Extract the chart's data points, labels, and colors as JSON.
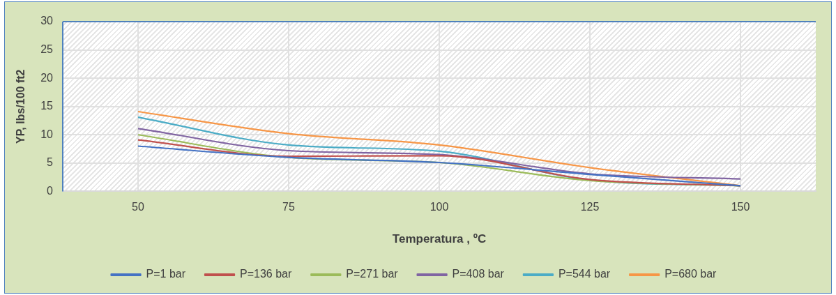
{
  "chart_data": {
    "type": "line",
    "xlabel": "Temperatura , ºC",
    "ylabel": "YP, lbs/100 ft2",
    "categories": [
      "50",
      "75",
      "100",
      "125",
      "150"
    ],
    "series": [
      {
        "name": "P=1 bar",
        "color": "#4472c4",
        "values": [
          8.0,
          6.0,
          5.1,
          3.0,
          1.0
        ]
      },
      {
        "name": "P=136 bar",
        "color": "#c0504d",
        "values": [
          9.1,
          6.2,
          6.3,
          2.1,
          1.0
        ]
      },
      {
        "name": "P=271 bar",
        "color": "#9bbb59",
        "values": [
          10.0,
          6.0,
          5.1,
          1.9,
          1.0
        ]
      },
      {
        "name": "P=408 bar",
        "color": "#8064a2",
        "values": [
          11.1,
          7.2,
          6.5,
          3.1,
          2.2
        ]
      },
      {
        "name": "P=544 bar",
        "color": "#4bacc6",
        "values": [
          13.1,
          8.2,
          7.1,
          2.0,
          1.0
        ]
      },
      {
        "name": "P=680 bar",
        "color": "#f79646",
        "values": [
          14.1,
          10.2,
          8.2,
          4.2,
          1.0
        ]
      }
    ],
    "ylim": [
      0,
      30
    ],
    "yticks": [
      0,
      5,
      10,
      15,
      20,
      25,
      30
    ],
    "grid": true,
    "legend": "bottom",
    "marker": "none",
    "line_style": "solid"
  }
}
